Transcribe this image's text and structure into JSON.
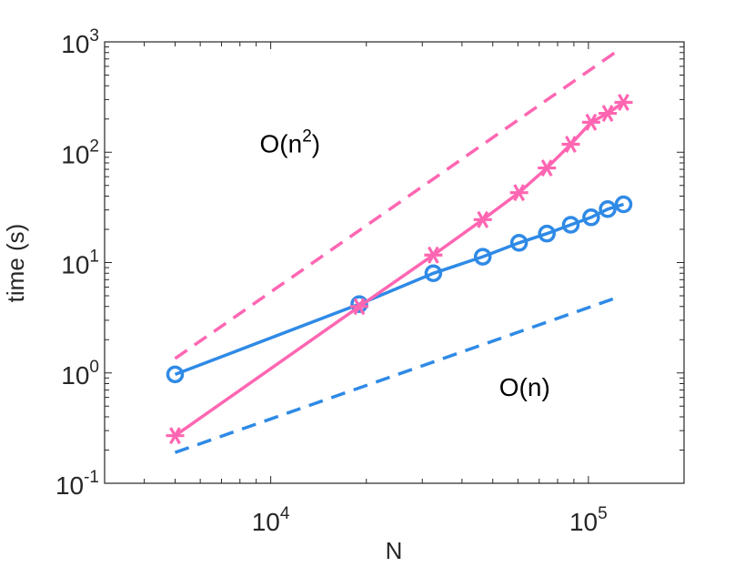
{
  "chart_data": {
    "type": "line",
    "xscale": "log",
    "yscale": "log",
    "xlabel": "N",
    "ylabel": "time (s)",
    "xlim": [
      3000,
      200000
    ],
    "ylim": [
      0.1,
      1000
    ],
    "grid": false,
    "x_ticks": [
      {
        "value": 10000,
        "base": "10",
        "exp": "4"
      },
      {
        "value": 100000,
        "base": "10",
        "exp": "5"
      }
    ],
    "y_ticks": [
      {
        "value": 0.1,
        "base": "10",
        "exp": "-1"
      },
      {
        "value": 1,
        "base": "10",
        "exp": "0"
      },
      {
        "value": 10,
        "base": "10",
        "exp": "1"
      },
      {
        "value": 100,
        "base": "10",
        "exp": "2"
      },
      {
        "value": 1000,
        "base": "10",
        "exp": "3"
      }
    ],
    "series": [
      {
        "name": "blue",
        "color": "#2f8ae6",
        "marker": "circle",
        "x": [
          5000,
          19000,
          32500,
          46500,
          60500,
          74000,
          88000,
          102000,
          115000,
          129000
        ],
        "y": [
          0.97,
          4.2,
          8.0,
          11.3,
          15.1,
          18.3,
          22.0,
          25.7,
          30.5,
          33.7
        ]
      },
      {
        "name": "pink",
        "color": "#ff66b2",
        "marker": "asterisk",
        "x": [
          5000,
          19000,
          32500,
          46500,
          60500,
          74000,
          88000,
          102000,
          115000,
          129000
        ],
        "y": [
          0.27,
          4.0,
          11.7,
          24.5,
          43.0,
          72.0,
          118.0,
          187.0,
          225.0,
          283.0
        ]
      }
    ],
    "reference_lines": [
      {
        "name": "O(n) reference",
        "color": "#2f8ae6",
        "x": [
          5000,
          125000
        ],
        "y": [
          0.19,
          4.9
        ]
      },
      {
        "name": "O(n^2) reference",
        "color": "#ff66b2",
        "x": [
          5000,
          125000
        ],
        "y": [
          1.35,
          850
        ]
      }
    ],
    "annotations": [
      {
        "id": "n2",
        "base": "O(n",
        "sup": "2",
        "tail": ")",
        "x": 11500,
        "y": 120
      },
      {
        "id": "n",
        "text": "O(n)",
        "x": 63000,
        "y": 0.75
      }
    ]
  }
}
